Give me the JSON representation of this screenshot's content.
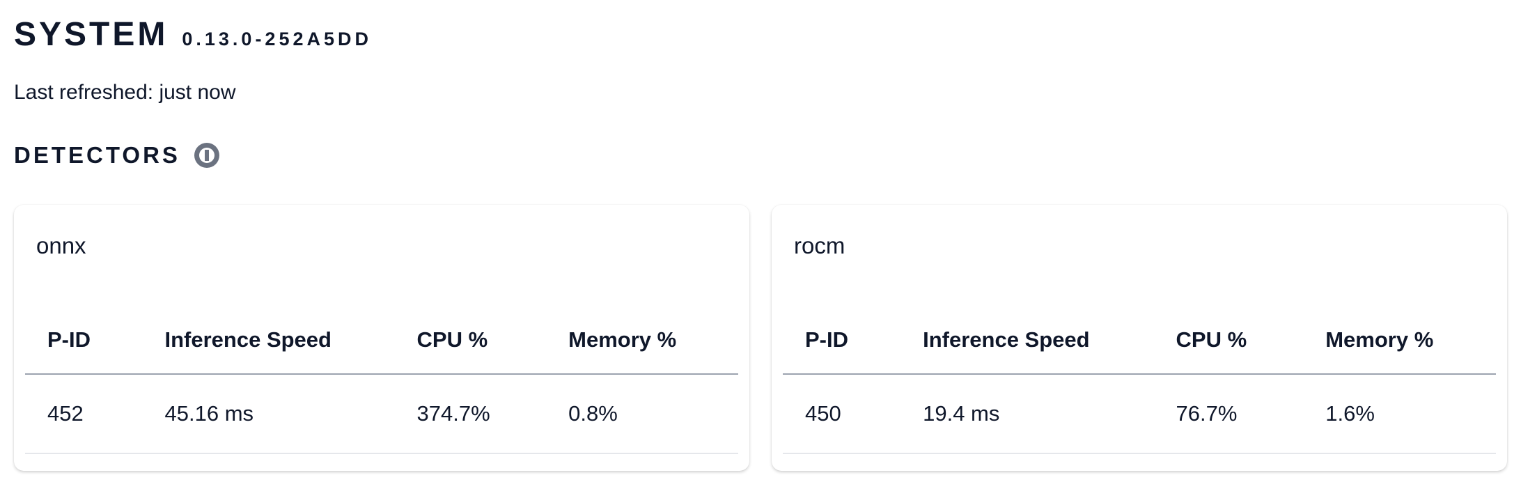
{
  "header": {
    "title": "SYSTEM",
    "version": "0.13.0-252A5DD"
  },
  "last_refreshed": "Last refreshed: just now",
  "detectors": {
    "title": "DETECTORS",
    "info_icon": "info-circle-icon",
    "columns": [
      "P-ID",
      "Inference Speed",
      "CPU %",
      "Memory %"
    ],
    "cards": [
      {
        "name": "onnx",
        "row": [
          "452",
          "45.16 ms",
          "374.7%",
          "0.8%"
        ]
      },
      {
        "name": "rocm",
        "row": [
          "450",
          "19.4 ms",
          "76.7%",
          "1.6%"
        ]
      }
    ]
  }
}
